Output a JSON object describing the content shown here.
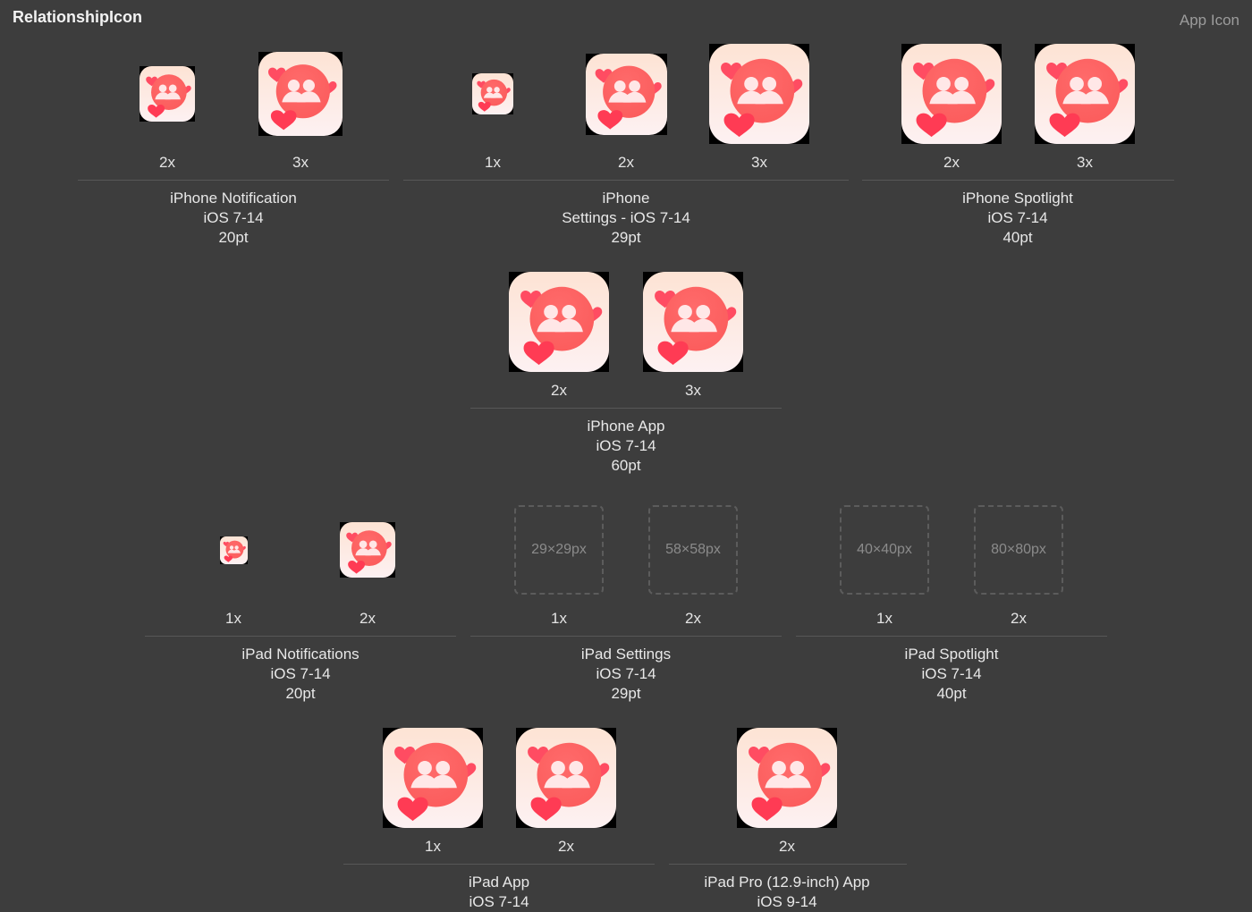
{
  "header": {
    "title": "RelationshipIcon",
    "type_label": "App Icon"
  },
  "colors": {
    "background": "#3d3d3d",
    "icon_gradient_top": "#fde3d4",
    "icon_gradient_bottom": "#fdf1f2",
    "icon_circle": "#fb5c5c",
    "icon_heart": "#ff3b54"
  },
  "icon_semantic": "relationship-app-icon",
  "groups": [
    {
      "name": "iphone-notification",
      "line1": "iPhone Notification",
      "line2": "iOS 7-14",
      "line3": "20pt",
      "slots": [
        {
          "scale": "2x",
          "filled": true
        },
        {
          "scale": "3x",
          "filled": true
        }
      ]
    },
    {
      "name": "iphone-settings",
      "line1": "iPhone",
      "line2": "Settings - iOS 7-14",
      "line3": "29pt",
      "slots": [
        {
          "scale": "1x",
          "filled": true
        },
        {
          "scale": "2x",
          "filled": true
        },
        {
          "scale": "3x",
          "filled": true
        }
      ]
    },
    {
      "name": "iphone-spotlight",
      "line1": "iPhone Spotlight",
      "line2": "iOS 7-14",
      "line3": "40pt",
      "slots": [
        {
          "scale": "2x",
          "filled": true
        },
        {
          "scale": "3x",
          "filled": true
        }
      ]
    },
    {
      "name": "iphone-app",
      "line1": "iPhone App",
      "line2": "iOS 7-14",
      "line3": "60pt",
      "slots": [
        {
          "scale": "2x",
          "filled": true
        },
        {
          "scale": "3x",
          "filled": true
        }
      ]
    },
    {
      "name": "ipad-notifications",
      "line1": "iPad Notifications",
      "line2": "iOS 7-14",
      "line3": "20pt",
      "slots": [
        {
          "scale": "1x",
          "filled": true
        },
        {
          "scale": "2x",
          "filled": true
        }
      ]
    },
    {
      "name": "ipad-settings",
      "line1": "iPad Settings",
      "line2": "iOS 7-14",
      "line3": "29pt",
      "slots": [
        {
          "scale": "1x",
          "filled": false,
          "placeholder": "29×29px"
        },
        {
          "scale": "2x",
          "filled": false,
          "placeholder": "58×58px"
        }
      ]
    },
    {
      "name": "ipad-spotlight",
      "line1": "iPad Spotlight",
      "line2": "iOS 7-14",
      "line3": "40pt",
      "slots": [
        {
          "scale": "1x",
          "filled": false,
          "placeholder": "40×40px"
        },
        {
          "scale": "2x",
          "filled": false,
          "placeholder": "80×80px"
        }
      ]
    },
    {
      "name": "ipad-app",
      "line1": "iPad App",
      "line2": "iOS 7-14",
      "line3": "",
      "slots": [
        {
          "scale": "1x",
          "filled": true
        },
        {
          "scale": "2x",
          "filled": true
        }
      ]
    },
    {
      "name": "ipad-pro-app",
      "line1": "iPad Pro (12.9-inch) App",
      "line2": "iOS 9-14",
      "line3": "",
      "slots": [
        {
          "scale": "2x",
          "filled": true
        }
      ]
    }
  ]
}
